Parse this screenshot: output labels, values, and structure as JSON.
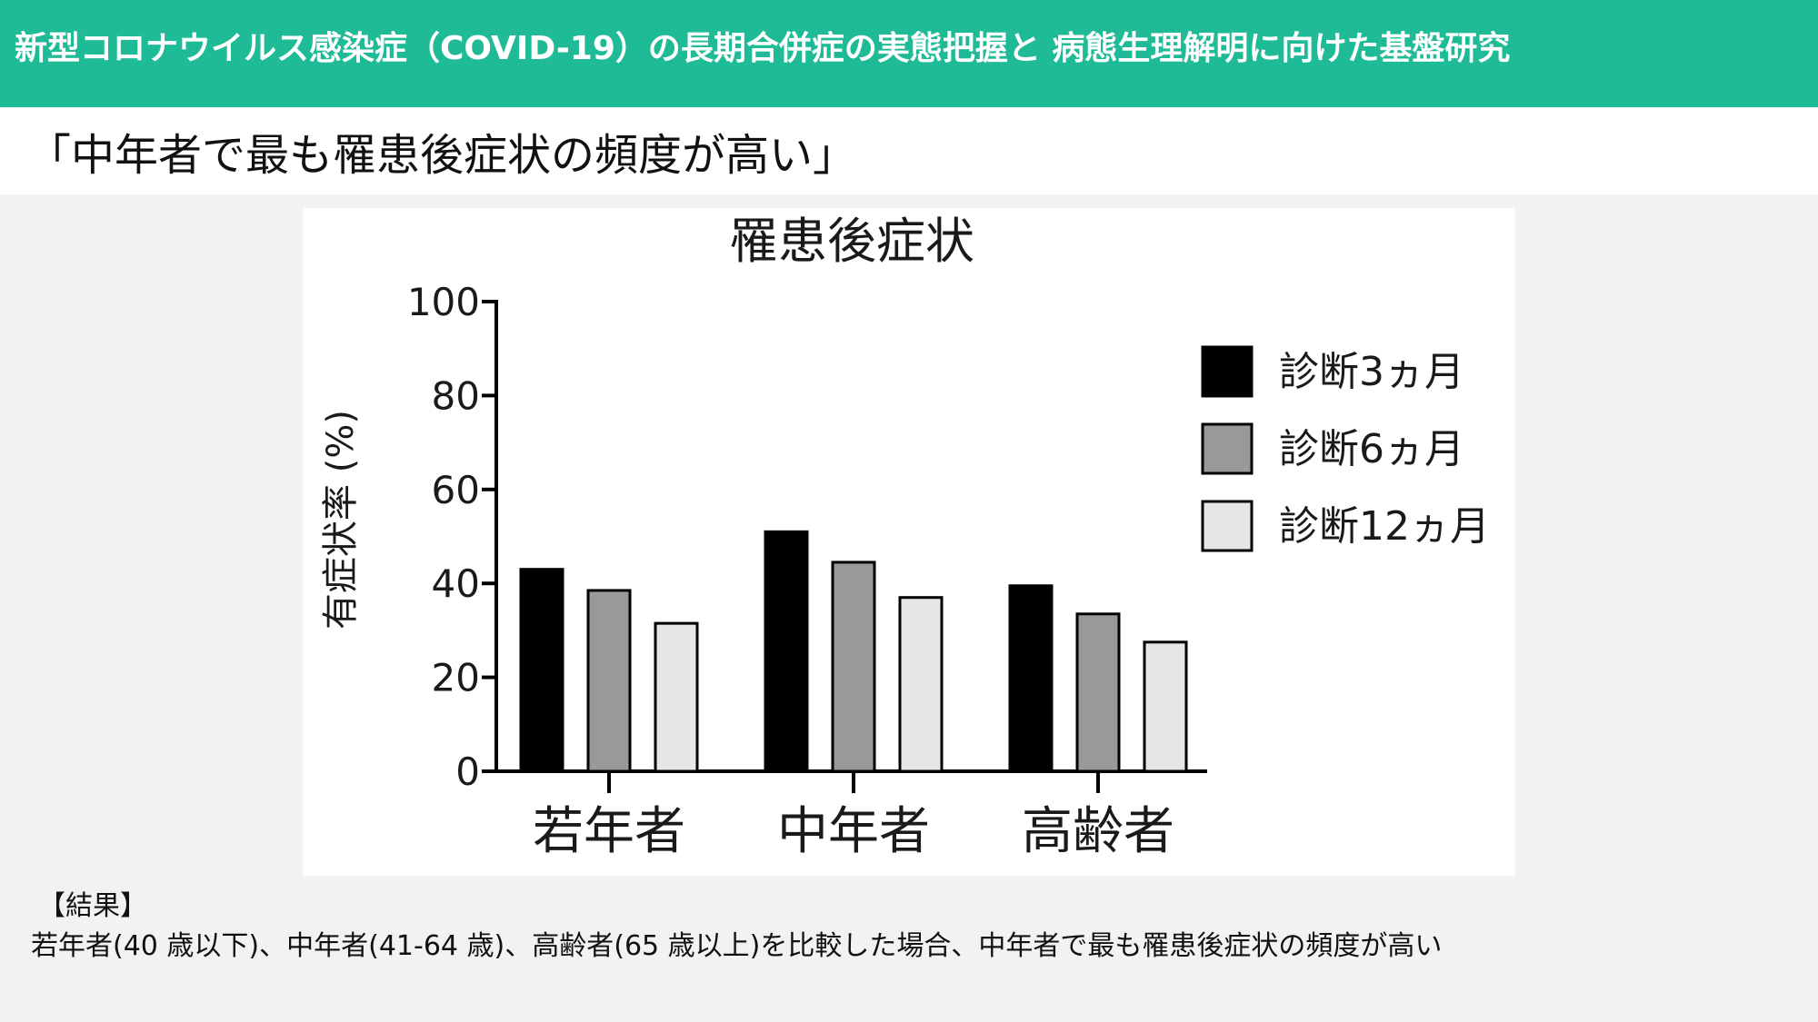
{
  "header": {
    "title": "新型コロナウイルス感染症（COVID-19）の長期合併症の実態把握と 病態生理解明に向けた基盤研究"
  },
  "subtitle": "「中年者で最も罹患後症状の頻度が高い」",
  "chart_data": {
    "type": "bar",
    "title": "罹患後症状",
    "ylabel": "有症状率 (%)",
    "xlabel": "",
    "ylim": [
      0,
      100
    ],
    "yticks": [
      0,
      20,
      40,
      60,
      80,
      100
    ],
    "categories": [
      "若年者",
      "中年者",
      "高齢者"
    ],
    "series": [
      {
        "name": "診断3ヵ月",
        "color": "#000000",
        "values": [
          43,
          51,
          39.5
        ]
      },
      {
        "name": "診断6ヵ月",
        "color": "#999999",
        "values": [
          38.5,
          44.5,
          33.5
        ]
      },
      {
        "name": "診断12ヵ月",
        "color": "#e6e6e6",
        "values": [
          31.5,
          37,
          27.5
        ]
      }
    ],
    "legend": "right",
    "grid": false
  },
  "results": {
    "label": "【結果】",
    "text": "若年者(40 歳以下)、中年者(41-64 歳)、高齢者(65 歳以上)を比較した場合、中年者で最も罹患後症状の頻度が高い"
  }
}
